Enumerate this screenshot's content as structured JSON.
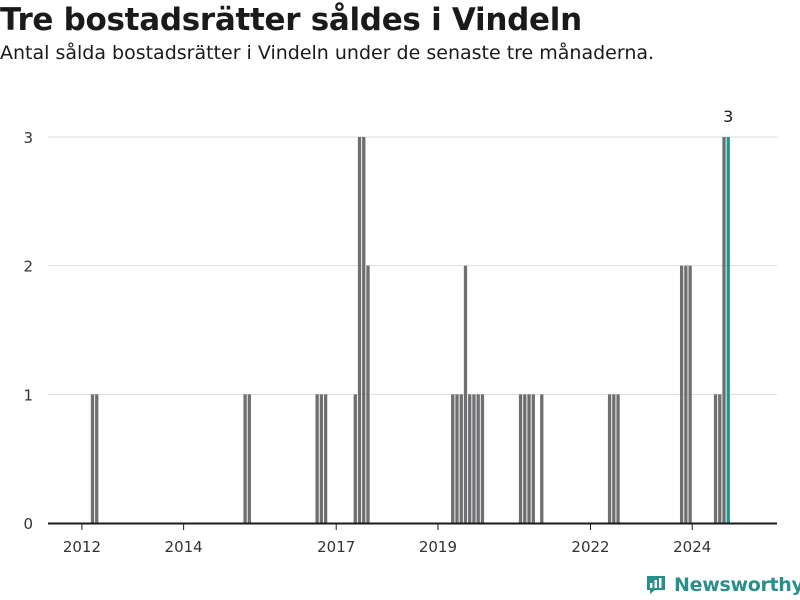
{
  "title": "Tre bostadsrätter såldes i Vindeln",
  "subtitle": "Antal sålda bostadsrätter i Vindeln under de senaste tre månaderna.",
  "brand": {
    "name": "Newsworthy",
    "icon": "newsworthy-logo-icon"
  },
  "colors": {
    "bar": "#6f6f71",
    "highlight": "#1a9a8e",
    "grid": "#dddddd",
    "axis": "#1a1a1a"
  },
  "chart_data": {
    "type": "bar",
    "xlabel": "",
    "ylabel": "",
    "xlim": [
      "2011-05",
      "2025-09"
    ],
    "ylim": [
      0,
      3
    ],
    "yticks": [
      0,
      1,
      2,
      3
    ],
    "xticks": [
      {
        "date": "2012-01",
        "label": "2012"
      },
      {
        "date": "2014-01",
        "label": "2014"
      },
      {
        "date": "2017-01",
        "label": "2017"
      },
      {
        "date": "2019-01",
        "label": "2019"
      },
      {
        "date": "2022-01",
        "label": "2022"
      },
      {
        "date": "2024-01",
        "label": "2024"
      }
    ],
    "grid": true,
    "legend": "none",
    "series": [
      {
        "values": [
          {
            "date": "2012-03",
            "value": 1
          },
          {
            "date": "2012-04",
            "value": 1
          },
          {
            "date": "2015-03",
            "value": 1
          },
          {
            "date": "2015-04",
            "value": 1
          },
          {
            "date": "2016-08",
            "value": 1
          },
          {
            "date": "2016-09",
            "value": 1
          },
          {
            "date": "2016-10",
            "value": 1
          },
          {
            "date": "2017-05",
            "value": 1
          },
          {
            "date": "2017-06",
            "value": 3
          },
          {
            "date": "2017-07",
            "value": 3
          },
          {
            "date": "2017-08",
            "value": 2
          },
          {
            "date": "2019-04",
            "value": 1
          },
          {
            "date": "2019-05",
            "value": 1
          },
          {
            "date": "2019-06",
            "value": 1
          },
          {
            "date": "2019-07",
            "value": 2
          },
          {
            "date": "2019-08",
            "value": 1
          },
          {
            "date": "2019-09",
            "value": 1
          },
          {
            "date": "2019-10",
            "value": 1
          },
          {
            "date": "2019-11",
            "value": 1
          },
          {
            "date": "2020-08",
            "value": 1
          },
          {
            "date": "2020-09",
            "value": 1
          },
          {
            "date": "2020-10",
            "value": 1
          },
          {
            "date": "2020-11",
            "value": 1
          },
          {
            "date": "2021-01",
            "value": 1
          },
          {
            "date": "2022-05",
            "value": 1
          },
          {
            "date": "2022-06",
            "value": 1
          },
          {
            "date": "2022-07",
            "value": 1
          },
          {
            "date": "2023-10",
            "value": 2
          },
          {
            "date": "2023-11",
            "value": 2
          },
          {
            "date": "2023-12",
            "value": 2
          },
          {
            "date": "2024-06",
            "value": 1
          },
          {
            "date": "2024-07",
            "value": 1
          },
          {
            "date": "2024-08",
            "value": 3
          },
          {
            "date": "2024-09",
            "value": 3,
            "highlight": true,
            "label": "3"
          }
        ]
      }
    ]
  }
}
